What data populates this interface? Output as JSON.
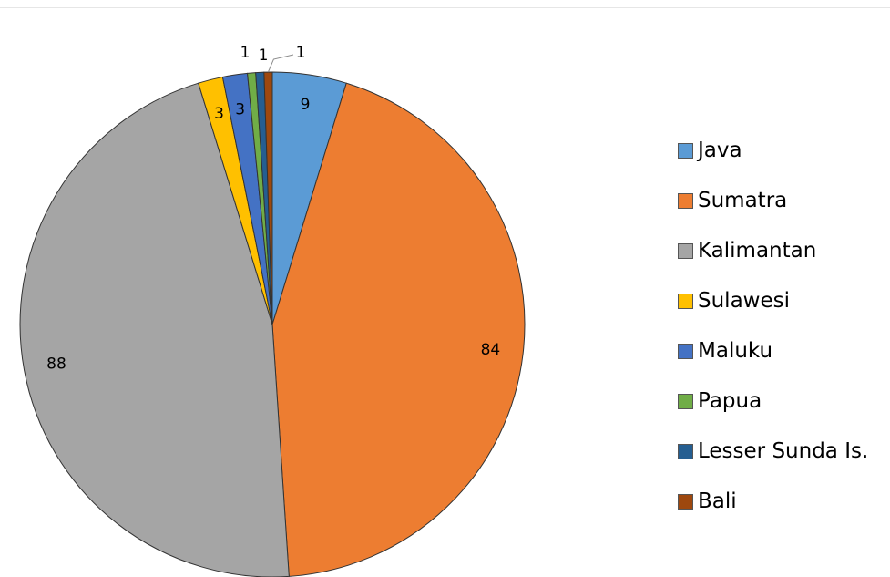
{
  "chart_data": {
    "type": "pie",
    "title": "",
    "categories": [
      "Java",
      "Sumatra",
      "Kalimantan",
      "Sulawesi",
      "Maluku",
      "Papua",
      "Lesser Sunda Is.",
      "Bali"
    ],
    "values": [
      9,
      84,
      88,
      3,
      3,
      1,
      1,
      1
    ],
    "data_labels": [
      "9",
      "84",
      "88",
      "3",
      "3",
      "1",
      "1",
      "1"
    ],
    "colors": [
      "#5b9bd5",
      "#ed7d31",
      "#a5a5a5",
      "#ffc000",
      "#4472c4",
      "#70ad47",
      "#255e91",
      "#9e480e"
    ],
    "start_angle_deg": 0,
    "direction": "clockwise",
    "legend_position": "right",
    "legend": [
      {
        "label": "Java",
        "color": "#5b9bd5"
      },
      {
        "label": "Sumatra",
        "color": "#ed7d31"
      },
      {
        "label": "Kalimantan",
        "color": "#a5a5a5"
      },
      {
        "label": "Sulawesi",
        "color": "#ffc000"
      },
      {
        "label": "Maluku",
        "color": "#4472c4"
      },
      {
        "label": "Papua",
        "color": "#70ad47"
      },
      {
        "label": "Lesser Sunda Is.",
        "color": "#255e91"
      },
      {
        "label": "Bali",
        "color": "#9e480e"
      }
    ]
  }
}
